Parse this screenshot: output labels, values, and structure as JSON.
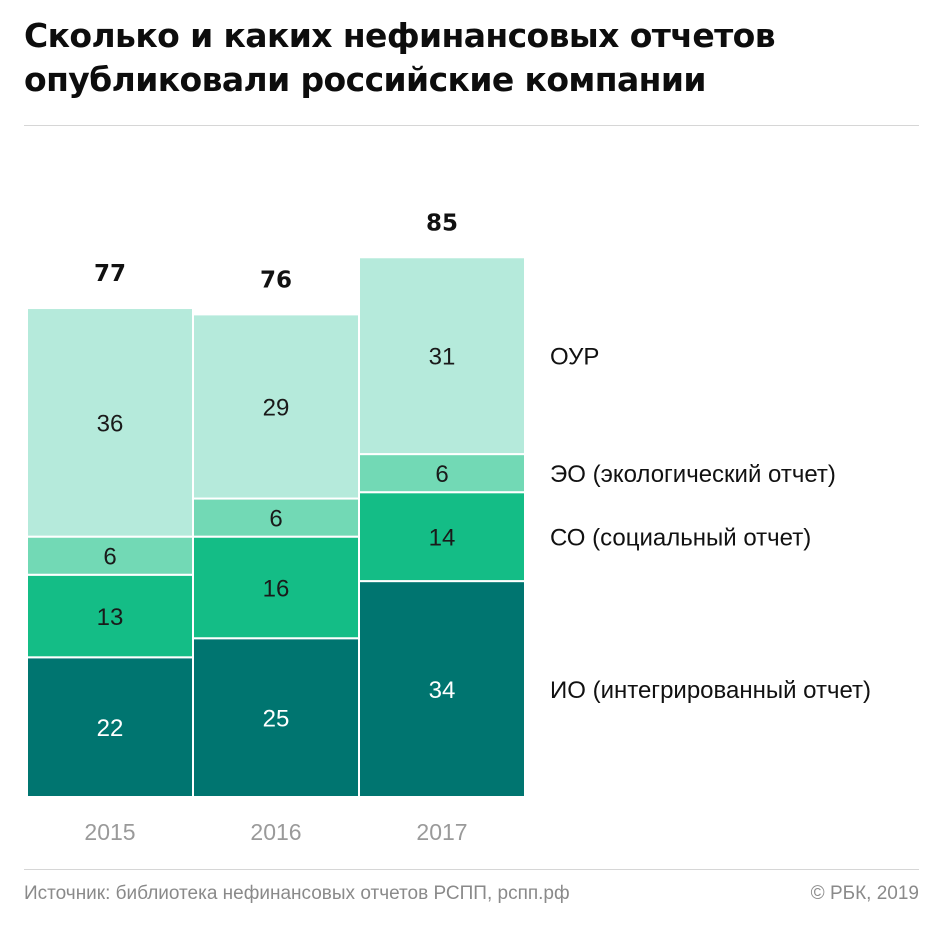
{
  "title_lines": [
    "Сколько и каких нефинансовых отчетов",
    "опубликовали российские компании"
  ],
  "footer": {
    "source": "Источник: библиотека нефинансовых отчетов РСПП, рспп.рф",
    "copyright": "© РБК, 2019"
  },
  "chart_data": {
    "type": "bar",
    "stacked": true,
    "categories": [
      "2015",
      "2016",
      "2017"
    ],
    "totals": [
      77,
      76,
      85
    ],
    "series": [
      {
        "name": "ИО (интегрированный отчет)",
        "values": [
          22,
          25,
          34
        ],
        "color": "#007570",
        "label_color": "#ffffff"
      },
      {
        "name": "СО (социальный отчет)",
        "values": [
          13,
          16,
          14
        ],
        "color": "#14bd86",
        "label_color": "#1a1a1a"
      },
      {
        "name": "ЭО (экологический отчет)",
        "values": [
          6,
          6,
          6
        ],
        "color": "#72d9b5",
        "label_color": "#1a1a1a"
      },
      {
        "name": "ОУР",
        "values": [
          36,
          29,
          31
        ],
        "color": "#b5eadb",
        "label_color": "#1a1a1a"
      }
    ],
    "legend_placement": "right",
    "ylim": [
      0,
      85
    ],
    "grid": false
  }
}
